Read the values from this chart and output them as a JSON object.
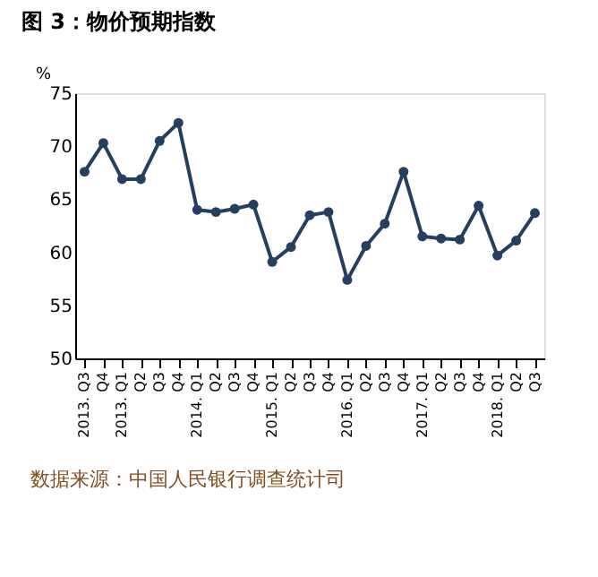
{
  "chart_data": {
    "type": "line",
    "title": "图 3：物价预期指数",
    "ylabel": "%",
    "categories": [
      "2013. Q3",
      "Q4",
      "2013. Q1",
      "Q2",
      "Q3",
      "Q4",
      "2014. Q1",
      "Q2",
      "Q3",
      "Q4",
      "2015. Q1",
      "Q2",
      "Q3",
      "Q4",
      "2016. Q1",
      "Q2",
      "Q3",
      "Q4",
      "2017. Q1",
      "Q2",
      "Q3",
      "Q4",
      "2018. Q1",
      "Q2",
      "Q3"
    ],
    "series": [
      {
        "color": "#243f60",
        "values": [
          67.6,
          70.3,
          66.9,
          66.9,
          70.5,
          72.2,
          64.0,
          63.8,
          64.1,
          64.5,
          59.1,
          60.5,
          63.5,
          63.8,
          57.4,
          60.6,
          62.7,
          67.6,
          61.5,
          61.3,
          61.2,
          64.4,
          59.7,
          61.1,
          63.7
        ]
      }
    ],
    "ylim": [
      50,
      75
    ],
    "yticks": [
      50,
      55,
      60,
      65,
      70,
      75
    ],
    "grid": false,
    "legend": false,
    "marker": "circle",
    "line_style": "solid",
    "annotations": [
      "数据来源：中国人民银行调查统计司"
    ]
  }
}
